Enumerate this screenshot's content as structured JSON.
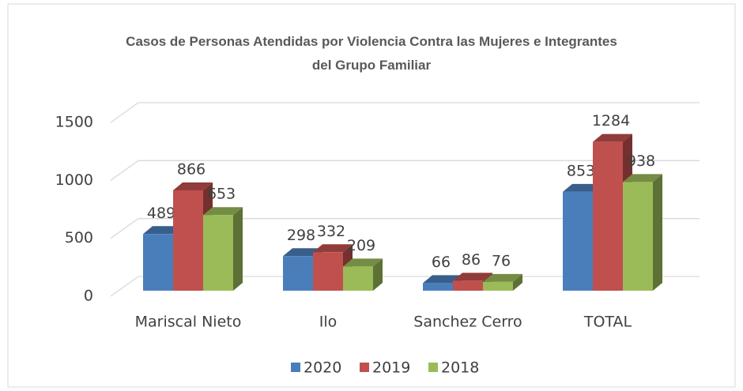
{
  "chart_data": {
    "type": "bar",
    "title": "Casos de Personas Atendidas por Violencia Contra las Mujeres e Integrantes del Grupo Familiar",
    "categories": [
      "Mariscal Nieto",
      "Ilo",
      "Sanchez Cerro",
      "TOTAL"
    ],
    "series": [
      {
        "name": "2020",
        "color": "#4a7ebb",
        "values": [
          489,
          298,
          66,
          853
        ]
      },
      {
        "name": "2019",
        "color": "#c0504d",
        "values": [
          866,
          332,
          86,
          1284
        ]
      },
      {
        "name": "2018",
        "color": "#9bbb59",
        "values": [
          653,
          209,
          76,
          938
        ]
      }
    ],
    "ylim": [
      0,
      1500
    ],
    "yticks": [
      0,
      500,
      1000,
      1500
    ],
    "grid": true,
    "legend": "bottom"
  }
}
